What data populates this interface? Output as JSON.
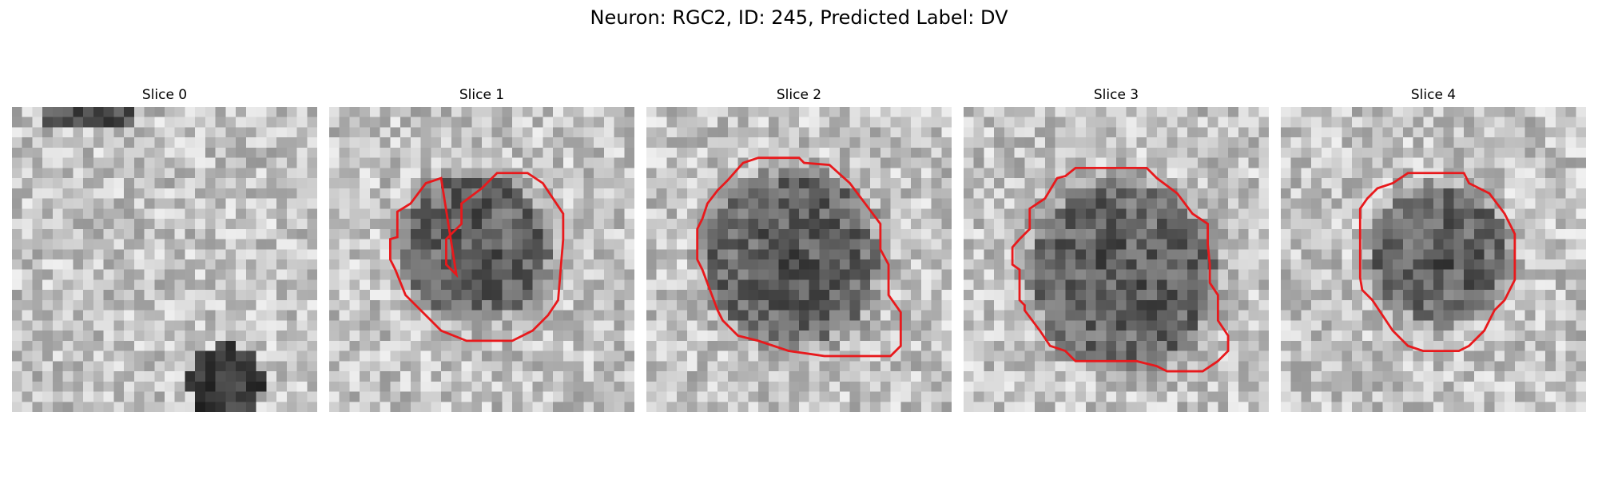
{
  "figure": {
    "title": "Neuron: RGC2, ID: 245, Predicted Label: DV"
  },
  "panels": [
    {
      "title": "Slice 0",
      "has_outline": false,
      "seed": 11,
      "blob": [
        0.0,
        0.0,
        0.0,
        0
      ]
    },
    {
      "title": "Slice 1",
      "has_outline": true,
      "seed": 23,
      "blob": [
        0.48,
        0.46,
        0.24,
        1
      ]
    },
    {
      "title": "Slice 2",
      "has_outline": true,
      "seed": 37,
      "blob": [
        0.48,
        0.5,
        0.28,
        1
      ]
    },
    {
      "title": "Slice 3",
      "has_outline": true,
      "seed": 41,
      "blob": [
        0.52,
        0.55,
        0.3,
        1
      ]
    },
    {
      "title": "Slice 4",
      "has_outline": true,
      "seed": 53,
      "blob": [
        0.52,
        0.48,
        0.22,
        1
      ]
    }
  ],
  "colors": {
    "outline": "#e8191c"
  }
}
